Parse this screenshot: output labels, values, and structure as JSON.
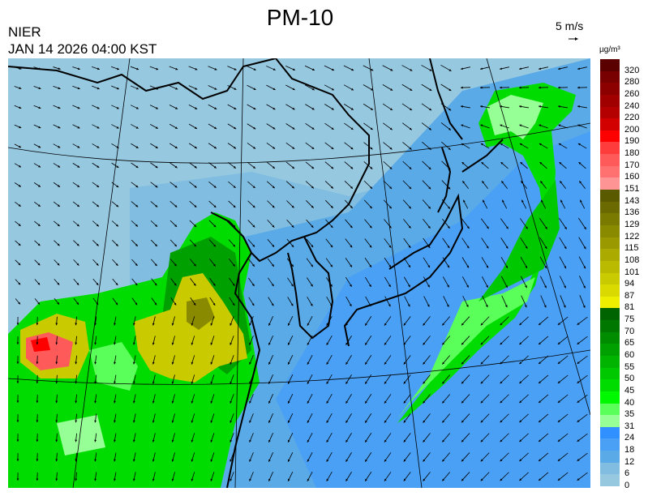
{
  "header": {
    "title": "PM-10",
    "organization": "NIER",
    "timestamp": "JAN 14 2026 04:00 KST",
    "wind_scale_label": "5 m/s",
    "unit": "µg/m³"
  },
  "legend": {
    "colors": [
      "#5a0000",
      "#780000",
      "#8c0000",
      "#a00000",
      "#b40000",
      "#d20000",
      "#ff0000",
      "#ff3c3c",
      "#ff5a5a",
      "#ff7070",
      "#ff9494",
      "#5a5a00",
      "#6a6a00",
      "#7a7a00",
      "#8a8a00",
      "#9a9a00",
      "#aaaa00",
      "#baba00",
      "#caca00",
      "#dada00",
      "#eeee00",
      "#006400",
      "#007800",
      "#008c00",
      "#00a000",
      "#00b400",
      "#00c800",
      "#00dc00",
      "#00f800",
      "#5aff5a",
      "#96ff96",
      "#3090ff",
      "#4aa0f5",
      "#5aaae8",
      "#80bde0",
      "#96c8e0"
    ],
    "labels": [
      "320",
      "280",
      "260",
      "240",
      "220",
      "200",
      "190",
      "180",
      "170",
      "160",
      "151",
      "143",
      "136",
      "129",
      "122",
      "115",
      "108",
      "101",
      "94",
      "87",
      "81",
      "75",
      "70",
      "65",
      "60",
      "55",
      "50",
      "45",
      "40",
      "35",
      "31",
      "24",
      "18",
      "12",
      "6",
      "0"
    ]
  },
  "map": {
    "background_color": "#96c8e0",
    "ocean_color": "#5aaae8",
    "wind_arrow_color": "#000000"
  }
}
